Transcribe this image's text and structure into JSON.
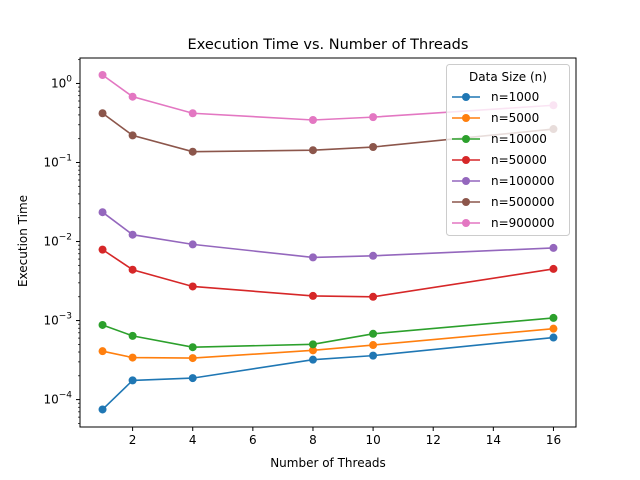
{
  "chart_data": {
    "type": "line",
    "title": "Execution Time vs. Number of Threads",
    "xlabel": "Number of Threads",
    "ylabel": "Execution Time",
    "yscale": "log",
    "xlim": [
      0.25,
      16.75
    ],
    "ylim": [
      4.5e-05,
      2.1
    ],
    "xticks": [
      2,
      4,
      6,
      8,
      10,
      12,
      14,
      16
    ],
    "yticks": [
      {
        "value": 0.0001,
        "base": "10",
        "exp": "−4"
      },
      {
        "value": 0.001,
        "base": "10",
        "exp": "−3"
      },
      {
        "value": 0.01,
        "base": "10",
        "exp": "−2"
      },
      {
        "value": 0.1,
        "base": "10",
        "exp": "−1"
      },
      {
        "value": 1,
        "base": "10",
        "exp": "0"
      }
    ],
    "grid": false,
    "legend": {
      "title": "Data Size (n)",
      "position": "top-right"
    },
    "x": [
      1,
      2,
      4,
      8,
      10,
      16
    ],
    "series": [
      {
        "name": "n=1000",
        "color": "#1f77b4",
        "values": [
          7.5e-05,
          0.000175,
          0.000187,
          0.00032,
          0.00036,
          0.00061
        ]
      },
      {
        "name": "n=5000",
        "color": "#ff7f0e",
        "values": [
          0.00041,
          0.00034,
          0.000335,
          0.00042,
          0.00049,
          0.00079
        ]
      },
      {
        "name": "n=10000",
        "color": "#2ca02c",
        "values": [
          0.00088,
          0.00064,
          0.00046,
          0.0005,
          0.00068,
          0.00108
        ]
      },
      {
        "name": "n=50000",
        "color": "#d62728",
        "values": [
          0.0079,
          0.0044,
          0.0027,
          0.00205,
          0.002,
          0.0045
        ]
      },
      {
        "name": "n=100000",
        "color": "#9467bd",
        "values": [
          0.0235,
          0.0122,
          0.0092,
          0.0063,
          0.0066,
          0.0083
        ]
      },
      {
        "name": "n=500000",
        "color": "#8c564b",
        "values": [
          0.42,
          0.22,
          0.137,
          0.143,
          0.157,
          0.265
        ]
      },
      {
        "name": "n=900000",
        "color": "#e377c2",
        "values": [
          1.28,
          0.68,
          0.42,
          0.345,
          0.375,
          0.53
        ]
      }
    ]
  }
}
